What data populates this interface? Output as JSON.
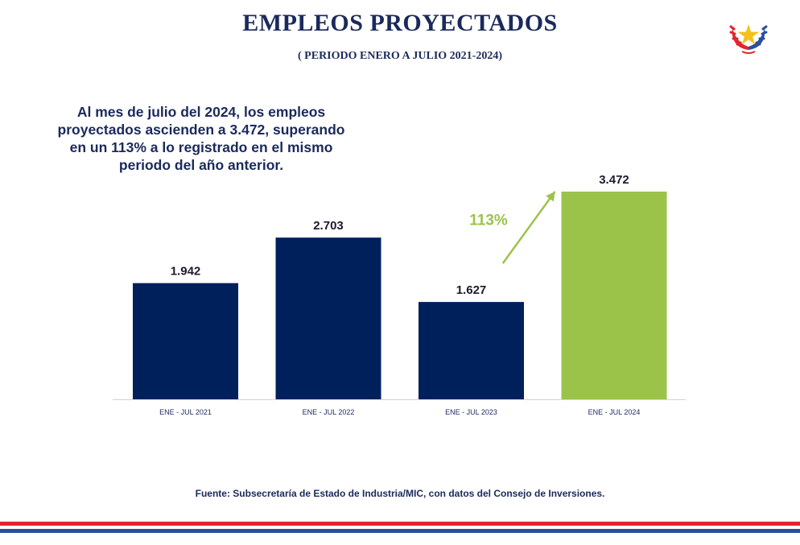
{
  "header": {
    "title": "EMPLEOS PROYECTADOS",
    "subtitle": "( PERIODO ENERO A JULIO 2021-2024)"
  },
  "note": "Al mes de julio del 2024, los empleos proyectados ascienden a 3.472, superando en un 113% a lo registrado en el mismo periodo del año anterior.",
  "footer": {
    "source": "Fuente: Subsecretaría de Estado de Industria/MIC, con datos del Consejo de Inversiones."
  },
  "logo_icon": "paraguay-emblem-icon",
  "colors": {
    "bar_dark": "#00205b",
    "bar_highlight": "#9bc34a",
    "text_dark": "#1b2a5c",
    "stripe_red": "#e0262c",
    "stripe_blue": "#2c4f9b"
  },
  "chart_data": {
    "type": "bar",
    "title": "",
    "xlabel": "",
    "ylabel": "",
    "categories": [
      "ENE - JUL 2021",
      "ENE - JUL 2022",
      "ENE - JUL 2023",
      "ENE - JUL 2024"
    ],
    "values": [
      1942,
      2703,
      1627,
      3472
    ],
    "data_labels": [
      "1.942",
      "2.703",
      "1.627",
      "3.472"
    ],
    "highlight_index": 3,
    "ylim": [
      0,
      3472
    ],
    "grid": false,
    "annotation": {
      "text": "113%",
      "from_index": 2,
      "to_index": 3
    }
  }
}
